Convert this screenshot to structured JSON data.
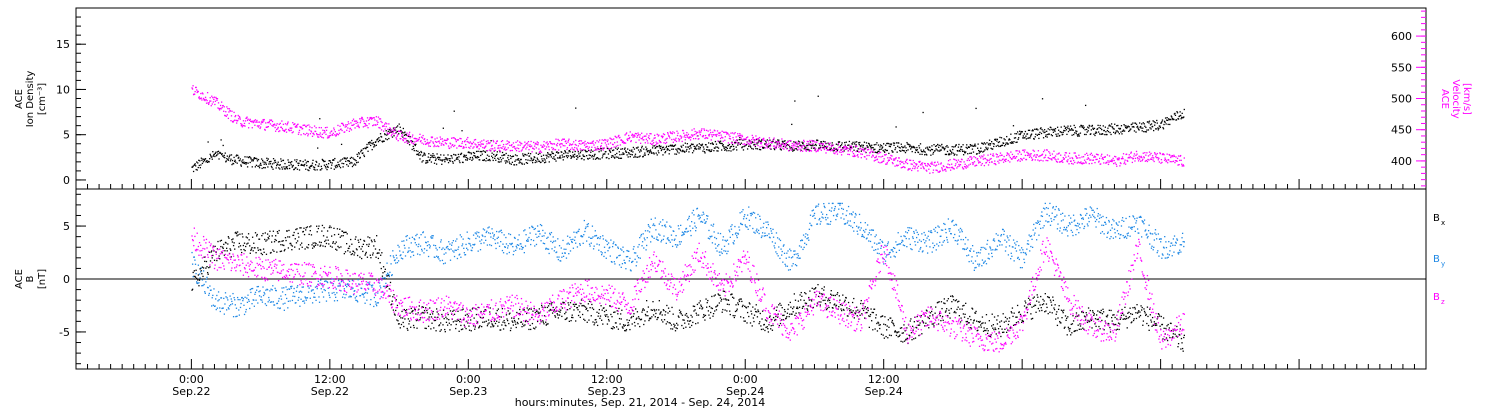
{
  "chart_data": [
    {
      "type": "scatter",
      "panel": "top",
      "ylabel_left": [
        "ACE",
        "Ion Density",
        "[cm⁻³]"
      ],
      "ylabel_right": [
        "ACE",
        "Velocity",
        "[km/s]"
      ],
      "ylim_left": [
        -1,
        19
      ],
      "ylim_right": [
        355,
        645
      ],
      "yticks_left": [
        0,
        5,
        10,
        15
      ],
      "yticks_right": [
        400,
        450,
        500,
        550,
        600
      ],
      "colors": {
        "density": "#000000",
        "velocity": "#ff00ff"
      },
      "series": [
        {
          "axis": "left",
          "color": "#000000",
          "x": [
            0,
            2,
            4,
            6,
            8,
            10,
            12,
            14,
            16,
            18,
            20,
            22,
            24,
            26,
            28,
            30,
            32,
            34,
            36,
            38,
            40,
            42,
            44,
            46,
            48,
            50,
            52,
            54,
            56,
            58,
            60,
            62,
            64,
            66,
            68,
            70,
            72,
            74,
            76,
            78,
            80,
            82,
            84,
            86
          ],
          "y": [
            1.3,
            2.8,
            2.2,
            1.9,
            1.8,
            1.7,
            1.8,
            2.0,
            4.5,
            5.8,
            2.5,
            2.3,
            2.6,
            2.8,
            2.3,
            2.5,
            2.8,
            2.9,
            3.0,
            3.1,
            3.3,
            3.5,
            3.6,
            3.8,
            4.0,
            4.0,
            3.8,
            3.9,
            3.8,
            3.7,
            3.6,
            3.6,
            3.4,
            3.4,
            3.5,
            4.2,
            5.0,
            5.3,
            5.5,
            5.5,
            5.7,
            5.8,
            6.2,
            7.5
          ]
        },
        {
          "axis": "right",
          "color": "#ff00ff",
          "x": [
            0,
            2,
            4,
            6,
            8,
            10,
            12,
            14,
            16,
            18,
            20,
            22,
            24,
            26,
            28,
            30,
            32,
            34,
            36,
            38,
            40,
            42,
            44,
            46,
            48,
            50,
            52,
            54,
            56,
            58,
            60,
            62,
            64,
            66,
            68,
            70,
            72,
            74,
            76,
            78,
            80,
            82,
            84,
            86
          ],
          "y": [
            515,
            495,
            465,
            460,
            456,
            450,
            445,
            460,
            465,
            440,
            435,
            430,
            430,
            425,
            425,
            423,
            428,
            425,
            428,
            440,
            435,
            440,
            445,
            440,
            435,
            430,
            425,
            425,
            420,
            415,
            405,
            395,
            390,
            395,
            400,
            405,
            410,
            410,
            405,
            405,
            400,
            410,
            405,
            400
          ]
        }
      ]
    },
    {
      "type": "scatter",
      "panel": "bottom",
      "ylabel": [
        "ACE",
        "B",
        "[nT]"
      ],
      "ylim": [
        -8.5,
        8.5
      ],
      "yticks": [
        -5,
        0,
        5
      ],
      "zero_line": true,
      "legend": [
        {
          "label": "B",
          "sub": "x",
          "color": "#000000"
        },
        {
          "label": "B",
          "sub": "y",
          "color": "#1e88e5"
        },
        {
          "label": "B",
          "sub": "z",
          "color": "#ff00ff"
        }
      ],
      "series": [
        {
          "color": "#000000",
          "x": [
            0,
            2,
            4,
            6,
            8,
            10,
            12,
            14,
            16,
            18,
            20,
            22,
            24,
            26,
            28,
            30,
            32,
            34,
            36,
            38,
            40,
            42,
            44,
            46,
            48,
            50,
            52,
            54,
            56,
            58,
            60,
            62,
            64,
            66,
            68,
            70,
            72,
            74,
            76,
            78,
            80,
            82,
            84,
            86
          ],
          "y": [
            -0.5,
            2.5,
            3.5,
            3.3,
            3.8,
            4.0,
            4.2,
            3.0,
            3.2,
            -4.0,
            -3.5,
            -4.0,
            -3.8,
            -3.5,
            -4.0,
            -3.5,
            -3.0,
            -3.0,
            -3.5,
            -4.0,
            -2.5,
            -4.0,
            -3.0,
            -2.0,
            -3.0,
            -4.0,
            -2.5,
            -1.5,
            -2.0,
            -3.0,
            -4.5,
            -5.0,
            -3.5,
            -2.5,
            -4.0,
            -4.5,
            -3.0,
            -2.0,
            -4.5,
            -3.5,
            -4.0,
            -3.0,
            -4.5,
            -6.0
          ]
        },
        {
          "color": "#1e88e5",
          "x": [
            0,
            2,
            4,
            6,
            8,
            10,
            12,
            14,
            16,
            18,
            20,
            22,
            24,
            26,
            28,
            30,
            32,
            34,
            36,
            38,
            40,
            42,
            44,
            46,
            48,
            50,
            52,
            54,
            56,
            58,
            60,
            62,
            64,
            66,
            68,
            70,
            72,
            74,
            76,
            78,
            80,
            82,
            84,
            86
          ],
          "y": [
            1.5,
            -2.0,
            -2.5,
            -1.5,
            -1.8,
            -1.3,
            -1.0,
            -1.0,
            -1.5,
            3.0,
            3.5,
            2.5,
            3.5,
            4.0,
            3.0,
            4.5,
            2.5,
            4.5,
            3.0,
            1.5,
            5.0,
            4.0,
            6.0,
            3.0,
            6.0,
            4.5,
            1.5,
            6.0,
            6.5,
            5.0,
            2.5,
            4.0,
            3.5,
            5.0,
            1.5,
            4.0,
            2.0,
            6.5,
            5.0,
            6.0,
            4.5,
            5.5,
            3.0,
            3.5
          ]
        },
        {
          "color": "#ff00ff",
          "x": [
            0,
            2,
            4,
            6,
            8,
            10,
            12,
            14,
            16,
            18,
            20,
            22,
            24,
            26,
            28,
            30,
            32,
            34,
            36,
            38,
            40,
            42,
            44,
            46,
            48,
            50,
            52,
            54,
            56,
            58,
            60,
            62,
            64,
            66,
            68,
            70,
            72,
            74,
            76,
            78,
            80,
            82,
            84,
            86
          ],
          "y": [
            4.0,
            2.0,
            1.5,
            1.0,
            0.8,
            0.5,
            0.3,
            -0.3,
            -0.5,
            -2.5,
            -3.0,
            -2.5,
            -3.5,
            -3.0,
            -2.5,
            -3.5,
            -2.0,
            -1.0,
            -1.5,
            -2.5,
            2.0,
            -1.0,
            2.5,
            -1.0,
            2.0,
            -3.0,
            -5.0,
            -2.0,
            -3.0,
            -4.0,
            3.0,
            -5.0,
            -3.5,
            -4.5,
            -5.5,
            -6.0,
            -4.0,
            3.5,
            -2.0,
            -4.5,
            -5.0,
            3.0,
            -6.0,
            -4.0
          ]
        }
      ]
    }
  ],
  "x_axis": {
    "xlim": [
      -10,
      107
    ],
    "ticks": [
      {
        "x": 0,
        "time": "0:00",
        "date": "Sep.22"
      },
      {
        "x": 12,
        "time": "12:00",
        "date": "Sep.22"
      },
      {
        "x": 24,
        "time": "0:00",
        "date": "Sep.23"
      },
      {
        "x": 36,
        "time": "12:00",
        "date": "Sep.23"
      },
      {
        "x": 48,
        "time": "0:00",
        "date": "Sep.24"
      },
      {
        "x": 60,
        "time": "12:00",
        "date": "Sep.24"
      }
    ],
    "xlabel": "hours:minutes, Sep. 21, 2014 - Sep. 24, 2014"
  }
}
